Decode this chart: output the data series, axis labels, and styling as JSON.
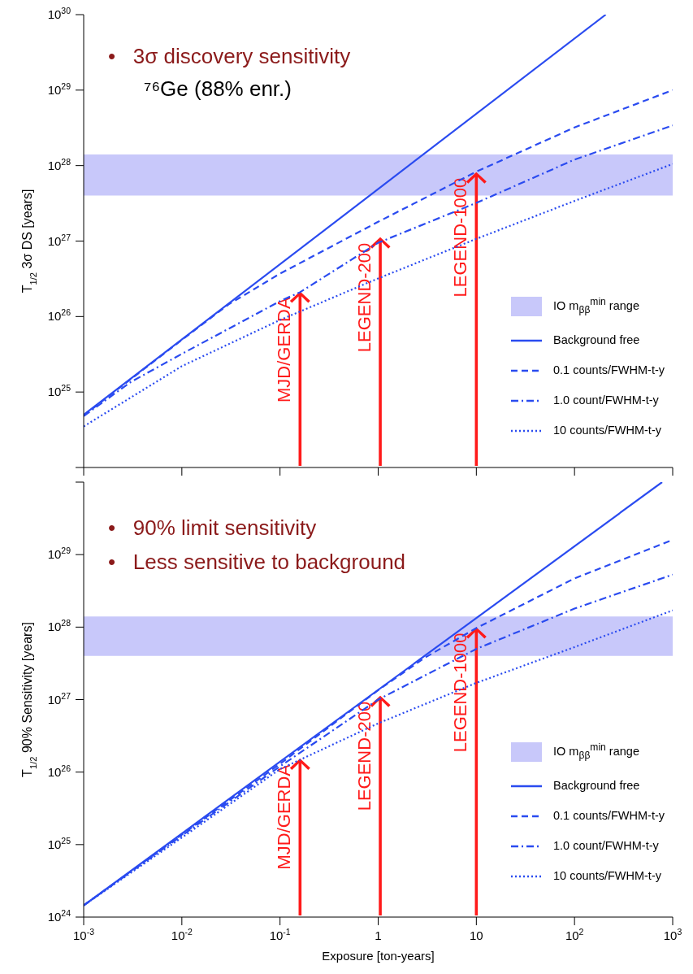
{
  "chart_data": [
    {
      "type": "line",
      "title": "•   3σ discovery sensitivity",
      "subtitle": "⁷⁶Ge (88% enr.)",
      "ylabel": "T$_{1/2}$ 3σ DS [years]",
      "log": "xy",
      "xlim": [
        0.001,
        1000
      ],
      "ylim": [
        1e+24,
        1e+30
      ],
      "xticks": [
        0.001,
        0.01,
        0.1,
        1,
        10,
        100,
        1000
      ],
      "yticks": [
        {
          "value": 1e+24,
          "label": null
        },
        {
          "value": 1e+25,
          "label": "10$^{25}$"
        },
        {
          "value": 1e+26,
          "label": "10$^{26}$"
        },
        {
          "value": 1e+27,
          "label": "10$^{27}$"
        },
        {
          "value": 1e+28,
          "label": "10$^{28}$"
        },
        {
          "value": 1e+29,
          "label": "10$^{29}$"
        },
        {
          "value": 1e+30,
          "label": "10$^{30}$"
        }
      ],
      "tick_labels": "y",
      "legend": "bottom right",
      "bands": [
        {
          "axis": "y",
          "from": 4e+27,
          "to": 1.4e+28,
          "label": "IO m$_{ββ}$$^{min}$ range",
          "color": "#c8c8fa"
        }
      ],
      "series": [
        {
          "name": "Background free",
          "color": "#2a4bf0",
          "line_style": "solid",
          "x": [
            0.001,
            208
          ],
          "values": [
            5e+24,
            1e+30
          ]
        },
        {
          "name": "0.1 counts/FWHM-t-y",
          "color": "#2a4bf0",
          "line_style": "dashed",
          "x": [
            0.001,
            0.01,
            0.03,
            0.1,
            1,
            10,
            100,
            1000
          ],
          "values": [
            4.9e+24,
            4.9e+25,
            1.45e+26,
            3.7e+26,
            1.8e+27,
            8.3e+27,
            3.2e+28,
            1e+29
          ]
        },
        {
          "name": "1.0 count/FWHM-t-y",
          "color": "#2a4bf0",
          "line_style": "dashdot",
          "x": [
            0.001,
            0.003,
            0.01,
            0.1,
            0.16,
            1,
            10,
            100,
            1000
          ],
          "values": [
            4.8e+24,
            1.35e+25,
            3.2e+25,
            1.6e+26,
            2.1e+26,
            9.5e+26,
            3.2e+27,
            1.2e+28,
            3.4e+28
          ]
        },
        {
          "name": "10 counts/FWHM-t-y",
          "color": "#2a4bf0",
          "line_style": "dotted",
          "x": [
            0.001,
            0.01,
            0.1,
            1,
            10,
            100,
            1000
          ],
          "values": [
            3.5e+24,
            2.2e+25,
            9e+25,
            3.2e+26,
            1.07e+27,
            3.4e+27,
            1.05e+28
          ]
        }
      ],
      "annotations": [
        {
          "text": "MJD/GERDA",
          "x": 0.16,
          "y": 2.1e+26
        },
        {
          "text": "LEGEND-200",
          "x": 1.05,
          "y": 1.1e+27
        },
        {
          "text": "LEGEND-1000",
          "x": 10,
          "y": 8e+27
        }
      ]
    },
    {
      "type": "line",
      "title": "•   90% limit sensitivity",
      "ylabel": "T$_{1/2}$ 90% Sensitivity [years]",
      "xlabel": "Exposure [ton-years]",
      "log": "xy",
      "xlim": [
        0.001,
        1000
      ],
      "ylim": [
        1e+24,
        1e+30
      ],
      "xticks": [
        {
          "value": 0.001,
          "label": "10$^{-3}$"
        },
        {
          "value": 0.01,
          "label": "10$^{-2}$"
        },
        {
          "value": 0.1,
          "label": "10$^{-1}$"
        },
        1,
        10,
        {
          "value": 100,
          "label": "10$^{2}$"
        },
        {
          "value": 1000,
          "label": "10$^{3}$"
        }
      ],
      "yticks": [
        {
          "value": 1e+24,
          "label": "10$^{24}$"
        },
        {
          "value": 1e+25,
          "label": "10$^{25}$"
        },
        {
          "value": 1e+26,
          "label": "10$^{26}$"
        },
        {
          "value": 1e+27,
          "label": "10$^{27}$"
        },
        {
          "value": 1e+28,
          "label": "10$^{28}$"
        },
        {
          "value": 1e+29,
          "label": "10$^{29}$"
        },
        {
          "value": 1e+30,
          "label": null
        }
      ],
      "legend": "bottom right",
      "bands": [
        {
          "axis": "y",
          "from": 4e+27,
          "to": 1.4e+28,
          "label": "IO m$_{ββ}$$^{min}$ range",
          "color": "#c8c8fa"
        }
      ],
      "series": [
        {
          "name": "Background free",
          "color": "#2a4bf0",
          "line_style": "solid",
          "x": [
            0.001,
            780
          ],
          "values": [
            1.45e+24,
            1e+30
          ]
        },
        {
          "name": "0.1 counts/FWHM-t-y",
          "color": "#2a4bf0",
          "line_style": "dashed",
          "x": [
            0.001,
            0.1,
            1,
            3,
            10,
            100,
            1000
          ],
          "values": [
            1.45e+24,
            1.3e+26,
            1.35e+27,
            3.8e+27,
            9.7e+27,
            4.7e+28,
            1.6e+29
          ]
        },
        {
          "name": "1.0 count/FWHM-t-y",
          "color": "#2a4bf0",
          "line_style": "dashdot",
          "x": [
            0.001,
            0.01,
            0.1,
            1,
            10,
            100,
            1000
          ],
          "values": [
            1.45e+24,
            1.33e+25,
            1.2e+26,
            1e+27,
            5e+27,
            1.8e+28,
            5.3e+28
          ]
        },
        {
          "name": "10 counts/FWHM-t-y",
          "color": "#2a4bf0",
          "line_style": "dotted",
          "x": [
            0.001,
            0.01,
            0.1,
            1,
            10,
            100,
            1000
          ],
          "values": [
            1.45e+24,
            1.25e+25,
            1.1e+26,
            4.7e+26,
            1.7e+27,
            5.3e+27,
            1.7e+28
          ]
        }
      ],
      "annotations": [
        "•   Less sensitive to background",
        {
          "text": "MJD/GERDA",
          "x": 0.16,
          "y": 1.5e+26
        },
        {
          "text": "LEGEND-200",
          "x": 1.05,
          "y": 1.1e+27
        },
        {
          "text": "LEGEND-1000",
          "x": 10,
          "y": 9.7e+27
        }
      ]
    }
  ]
}
